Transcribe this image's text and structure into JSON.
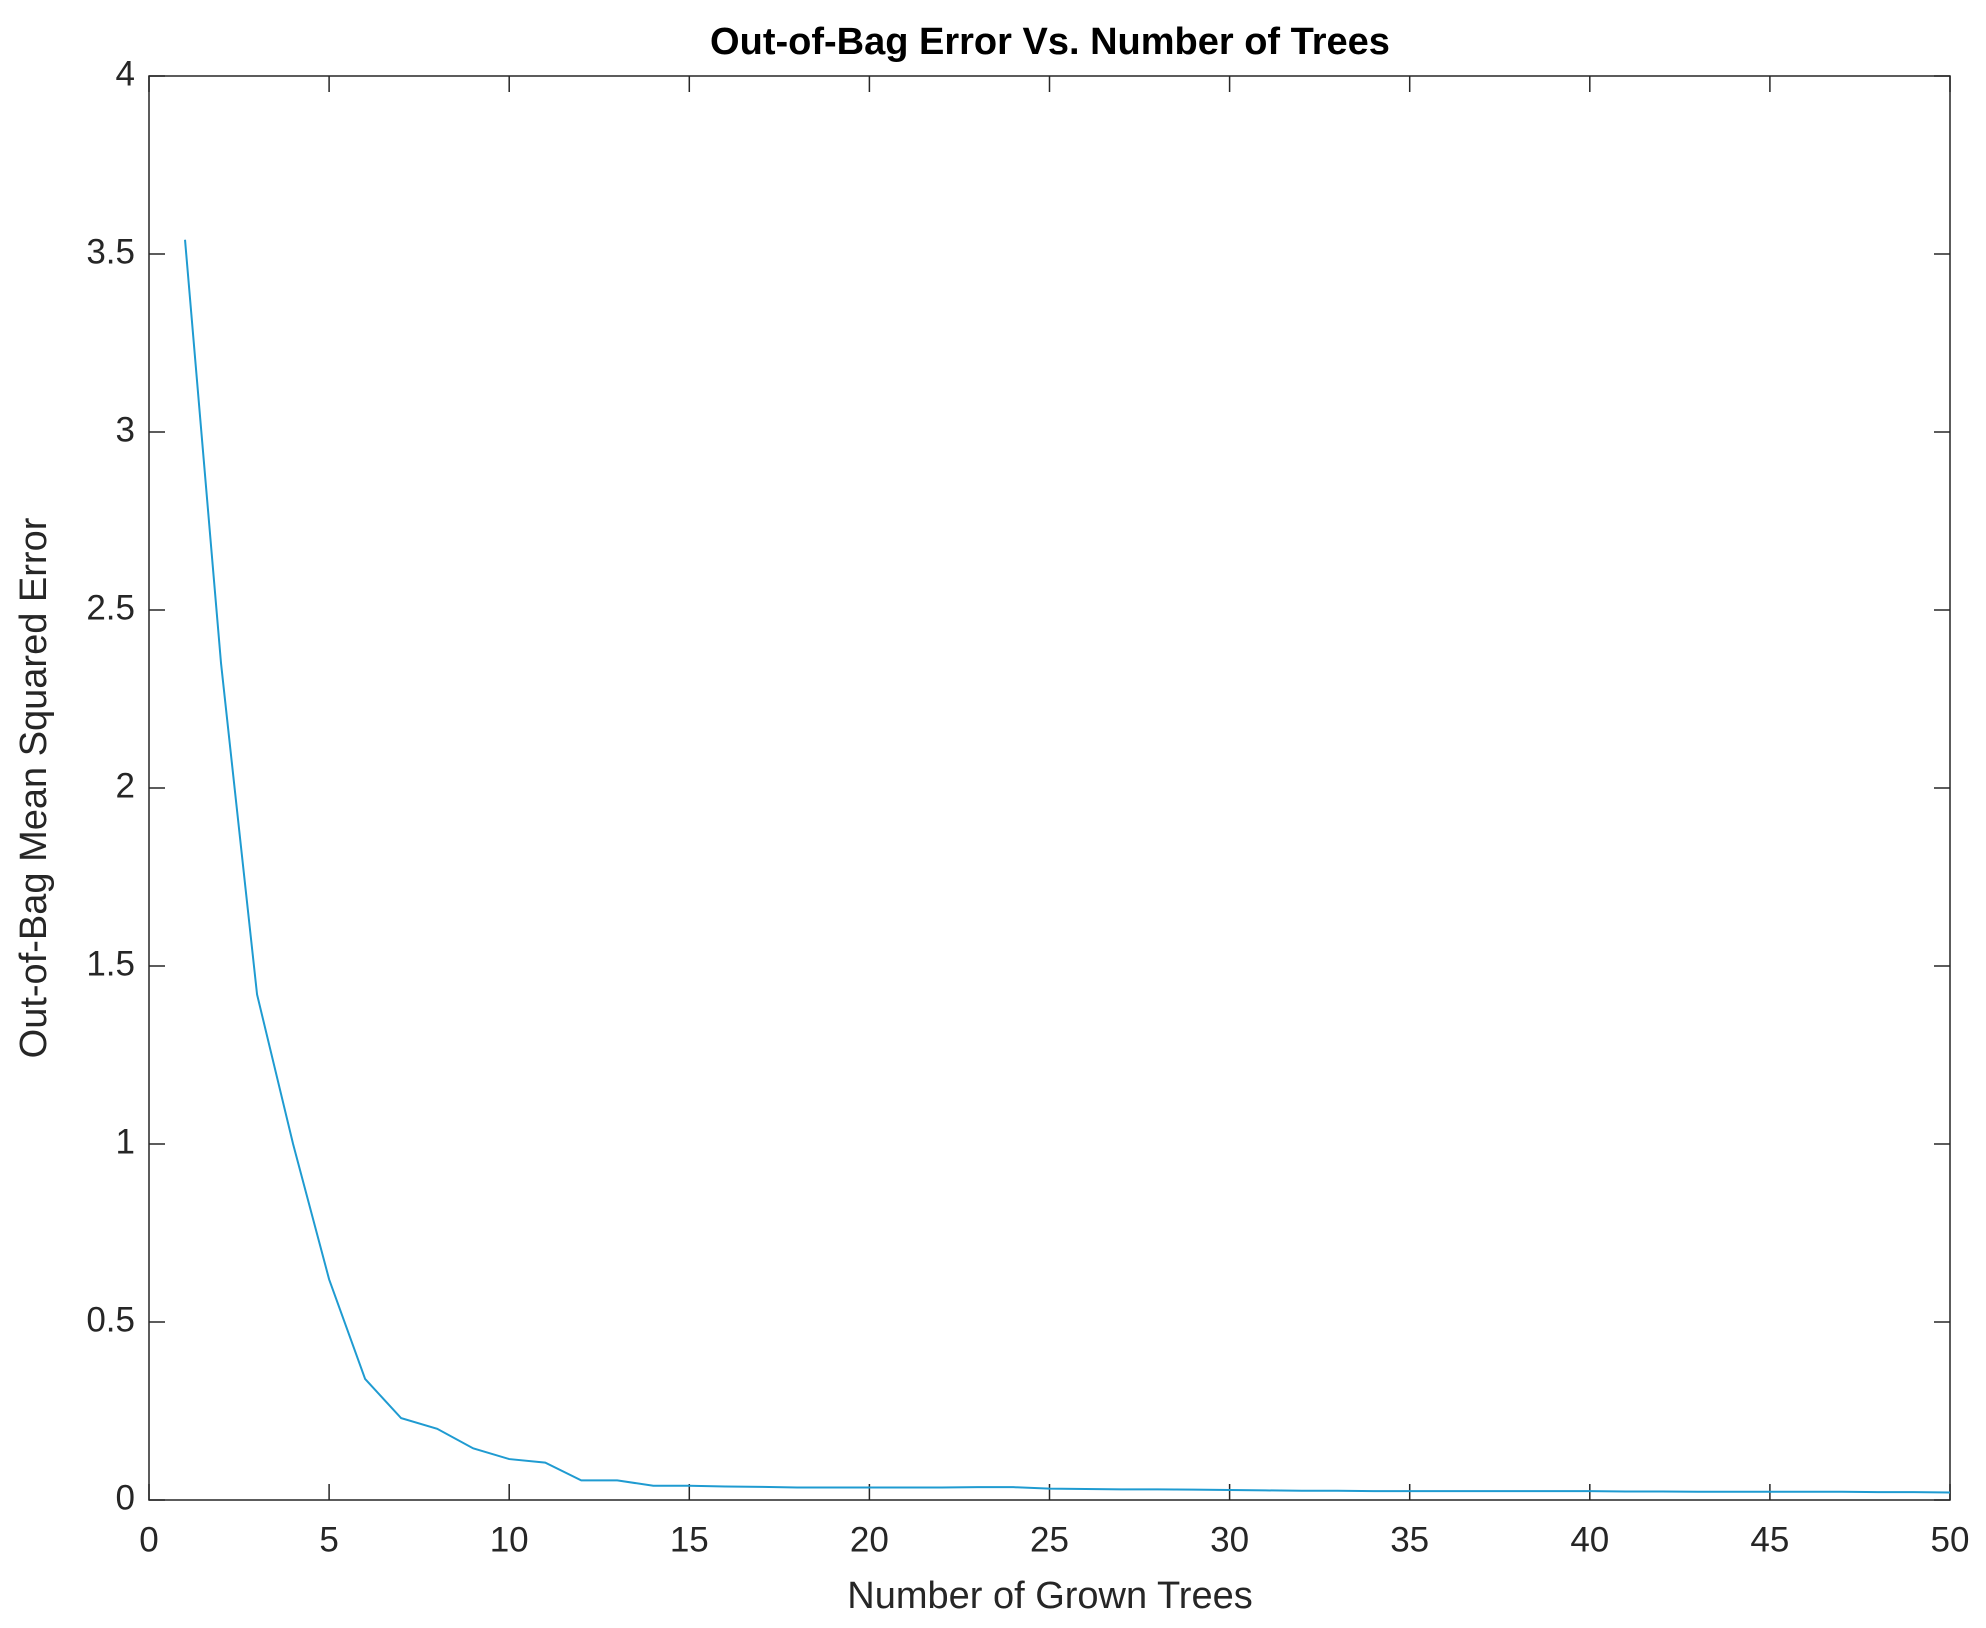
{
  "chart_data": {
    "type": "line",
    "title": "Out-of-Bag Error Vs. Number of Trees",
    "x_label": "Number of Grown Trees",
    "y_label": "Out-of-Bag Mean Squared Error",
    "x": [
      1,
      2,
      3,
      4,
      5,
      6,
      7,
      8,
      9,
      10,
      11,
      12,
      13,
      14,
      15,
      16,
      17,
      18,
      19,
      20,
      21,
      22,
      23,
      24,
      25,
      26,
      27,
      28,
      29,
      30,
      31,
      32,
      33,
      34,
      35,
      36,
      37,
      38,
      39,
      40,
      41,
      42,
      43,
      44,
      45,
      46,
      47,
      48,
      49,
      50
    ],
    "series": [
      {
        "color": "#1f9bd1",
        "values": [
          3.54,
          2.35,
          1.42,
          1.0,
          0.62,
          0.34,
          0.23,
          0.2,
          0.145,
          0.115,
          0.105,
          0.055,
          0.055,
          0.04,
          0.04,
          0.038,
          0.037,
          0.035,
          0.035,
          0.035,
          0.035,
          0.035,
          0.036,
          0.036,
          0.032,
          0.031,
          0.03,
          0.03,
          0.029,
          0.028,
          0.027,
          0.026,
          0.026,
          0.025,
          0.025,
          0.025,
          0.025,
          0.025,
          0.025,
          0.025,
          0.024,
          0.024,
          0.023,
          0.023,
          0.023,
          0.023,
          0.023,
          0.022,
          0.022,
          0.021
        ]
      }
    ],
    "xlim": [
      0,
      50
    ],
    "ylim": [
      0,
      4
    ],
    "xticks": [
      0,
      5,
      10,
      15,
      20,
      25,
      30,
      35,
      40,
      45,
      50
    ],
    "yticks": [
      0,
      0.5,
      1,
      1.5,
      2,
      2.5,
      3,
      3.5,
      4
    ],
    "grid": false
  }
}
